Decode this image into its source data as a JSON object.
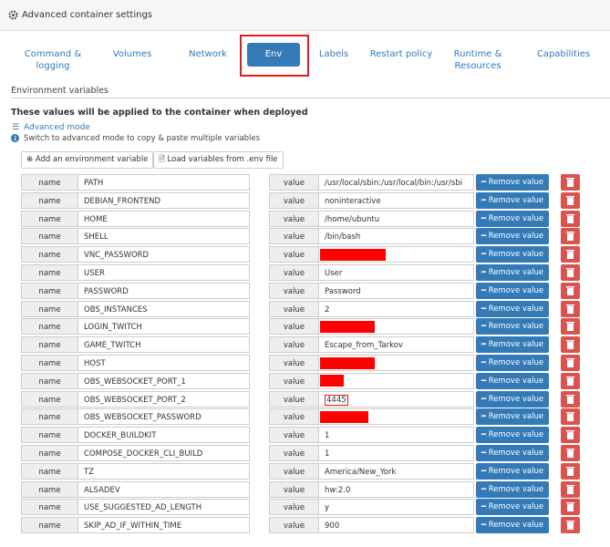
{
  "header": {
    "title": "Advanced container settings"
  },
  "tabs": {
    "items": [
      "Command & logging",
      "Volumes",
      "Network",
      "Env",
      "Labels",
      "Restart policy",
      "Runtime & Resources",
      "Capabilities"
    ],
    "active": "Env"
  },
  "section": {
    "title": "Environment variables",
    "description": "These values will be applied to the container when deployed",
    "advanced_mode": "Advanced mode",
    "hint": "Switch to advanced mode to copy & paste multiple variables"
  },
  "buttons": {
    "add": "Add an environment variable",
    "load": "Load variables from .env file"
  },
  "labels": {
    "name": "name",
    "value": "value",
    "remove": "Remove value"
  },
  "variables": [
    {
      "name": "PATH",
      "value": "/usr/local/sbin:/usr/local/bin:/usr/sbi"
    },
    {
      "name": "DEBIAN_FRONTEND",
      "value": "noninteractive"
    },
    {
      "name": "HOME",
      "value": "/home/ubuntu"
    },
    {
      "name": "SHELL",
      "value": "/bin/bash"
    },
    {
      "name": "VNC_PASSWORD",
      "value": null
    },
    {
      "name": "USER",
      "value": "User"
    },
    {
      "name": "PASSWORD",
      "value": "Password"
    },
    {
      "name": "OBS_INSTANCES",
      "value": "2"
    },
    {
      "name": "LOGIN_TWITCH",
      "value": null
    },
    {
      "name": "GAME_TWITCH",
      "value": "Escape_from_Tarkov"
    },
    {
      "name": "HOST",
      "value": null
    },
    {
      "name": "OBS_WEBSOCKET_PORT_1",
      "value": null
    },
    {
      "name": "OBS_WEBSOCKET_PORT_2",
      "value": "4445"
    },
    {
      "name": "OBS_WEBSOCKET_PASSWORD",
      "value": null
    },
    {
      "name": "DOCKER_BUILDKIT",
      "value": "1"
    },
    {
      "name": "COMPOSE_DOCKER_CLI_BUILD",
      "value": "1"
    },
    {
      "name": "TZ",
      "value": "America/New_York"
    },
    {
      "name": "ALSADEV",
      "value": "hw:2.0"
    },
    {
      "name": "USE_SUGGESTED_AD_LENGTH",
      "value": "y"
    },
    {
      "name": "SKIP_AD_IF_WITHIN_TIME",
      "value": "900"
    }
  ]
}
